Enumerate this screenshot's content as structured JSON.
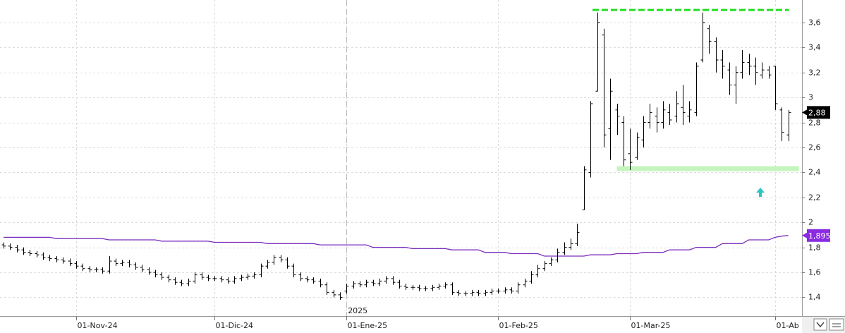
{
  "chart_data": {
    "type": "ohlc",
    "grid": true,
    "color": "#000000",
    "year_label": "2025",
    "categories": [
      null,
      null,
      null,
      null,
      null,
      null,
      null,
      null,
      null,
      null,
      null,
      "01-Nov-24",
      null,
      null,
      null,
      null,
      null,
      null,
      null,
      null,
      null,
      null,
      null,
      null,
      null,
      null,
      null,
      null,
      null,
      null,
      null,
      null,
      "01-Dic-24",
      null,
      null,
      null,
      null,
      null,
      null,
      null,
      null,
      null,
      null,
      null,
      null,
      null,
      null,
      null,
      null,
      null,
      null,
      null,
      "01-Ene-25",
      null,
      null,
      null,
      null,
      null,
      null,
      null,
      null,
      null,
      null,
      null,
      null,
      null,
      null,
      null,
      null,
      null,
      null,
      null,
      null,
      null,
      null,
      "01-Feb-25",
      null,
      null,
      null,
      null,
      null,
      null,
      null,
      null,
      null,
      null,
      null,
      null,
      null,
      null,
      null,
      null,
      null,
      null,
      null,
      "01-Mar-25",
      null,
      null,
      null,
      null,
      null,
      null,
      null,
      null,
      null,
      null,
      null,
      null,
      null,
      null,
      null,
      null,
      null,
      null,
      null,
      null,
      null,
      "01-Ab",
      null,
      null
    ],
    "open": [
      1.82,
      1.81,
      1.8,
      1.78,
      1.76,
      1.75,
      1.74,
      1.72,
      1.71,
      1.7,
      1.69,
      1.67,
      1.65,
      1.63,
      1.62,
      1.62,
      1.61,
      1.69,
      1.67,
      1.68,
      1.66,
      1.64,
      1.62,
      1.6,
      1.58,
      1.56,
      1.54,
      1.52,
      1.51,
      1.53,
      1.58,
      1.56,
      1.55,
      1.55,
      1.54,
      1.53,
      1.55,
      1.56,
      1.57,
      1.58,
      1.65,
      1.68,
      1.72,
      1.7,
      1.65,
      1.58,
      1.55,
      1.54,
      1.53,
      1.5,
      1.44,
      1.42,
      1.45,
      1.49,
      1.51,
      1.5,
      1.52,
      1.51,
      1.53,
      1.55,
      1.52,
      1.49,
      1.48,
      1.48,
      1.47,
      1.47,
      1.48,
      1.49,
      1.5,
      1.44,
      1.43,
      1.43,
      1.44,
      1.43,
      1.44,
      1.45,
      1.45,
      1.46,
      1.45,
      1.5,
      1.53,
      1.58,
      1.63,
      1.67,
      1.7,
      1.76,
      1.8,
      1.83,
      2.1,
      2.4,
      3.05,
      3.5,
      2.75,
      2.9,
      2.8,
      2.55,
      2.52,
      2.66,
      2.8,
      2.85,
      2.8,
      2.88,
      2.85,
      2.92,
      2.85,
      2.88,
      3.3,
      3.55,
      3.45,
      3.3,
      3.22,
      3.1,
      3.2,
      3.28,
      3.25,
      3.18,
      3.22,
      3.25,
      2.9,
      2.7
    ],
    "high": [
      1.84,
      1.83,
      1.82,
      1.8,
      1.78,
      1.77,
      1.76,
      1.74,
      1.73,
      1.72,
      1.71,
      1.69,
      1.67,
      1.65,
      1.64,
      1.64,
      1.73,
      1.71,
      1.7,
      1.7,
      1.68,
      1.66,
      1.64,
      1.62,
      1.6,
      1.58,
      1.56,
      1.54,
      1.55,
      1.6,
      1.6,
      1.58,
      1.57,
      1.57,
      1.56,
      1.57,
      1.58,
      1.59,
      1.6,
      1.67,
      1.7,
      1.74,
      1.74,
      1.72,
      1.67,
      1.6,
      1.57,
      1.56,
      1.55,
      1.52,
      1.46,
      1.44,
      1.51,
      1.53,
      1.53,
      1.54,
      1.54,
      1.55,
      1.57,
      1.57,
      1.54,
      1.51,
      1.5,
      1.5,
      1.49,
      1.5,
      1.51,
      1.52,
      1.52,
      1.46,
      1.45,
      1.46,
      1.46,
      1.46,
      1.47,
      1.47,
      1.48,
      1.48,
      1.52,
      1.55,
      1.61,
      1.66,
      1.69,
      1.72,
      1.79,
      1.84,
      1.87,
      1.99,
      2.45,
      2.97,
      3.68,
      3.55,
      3.15,
      2.95,
      2.85,
      2.75,
      2.72,
      2.85,
      2.95,
      2.92,
      2.97,
      2.95,
      3.05,
      3.1,
      2.97,
      3.28,
      3.68,
      3.58,
      3.48,
      3.38,
      3.28,
      3.25,
      3.38,
      3.35,
      3.32,
      3.28,
      3.25,
      3.25,
      2.92,
      2.9
    ],
    "low": [
      1.79,
      1.78,
      1.76,
      1.74,
      1.73,
      1.72,
      1.7,
      1.69,
      1.68,
      1.67,
      1.65,
      1.63,
      1.61,
      1.6,
      1.6,
      1.59,
      1.59,
      1.65,
      1.65,
      1.64,
      1.62,
      1.6,
      1.58,
      1.56,
      1.54,
      1.52,
      1.5,
      1.49,
      1.49,
      1.51,
      1.54,
      1.53,
      1.53,
      1.52,
      1.51,
      1.51,
      1.53,
      1.54,
      1.55,
      1.56,
      1.63,
      1.66,
      1.68,
      1.63,
      1.56,
      1.53,
      1.52,
      1.51,
      1.48,
      1.42,
      1.4,
      1.38,
      1.43,
      1.47,
      1.48,
      1.48,
      1.49,
      1.49,
      1.51,
      1.5,
      1.47,
      1.46,
      1.46,
      1.45,
      1.45,
      1.45,
      1.46,
      1.47,
      1.42,
      1.41,
      1.41,
      1.41,
      1.41,
      1.41,
      1.42,
      1.43,
      1.43,
      1.43,
      1.43,
      1.48,
      1.51,
      1.56,
      1.61,
      1.65,
      1.68,
      1.74,
      1.78,
      1.81,
      2.1,
      2.36,
      3.05,
      2.6,
      2.5,
      2.7,
      2.45,
      2.42,
      2.5,
      2.6,
      2.75,
      2.72,
      2.75,
      2.78,
      2.8,
      2.78,
      2.8,
      2.85,
      3.28,
      3.35,
      3.2,
      3.15,
      3.02,
      2.95,
      3.15,
      3.18,
      3.1,
      3.15,
      3.15,
      2.9,
      2.65,
      2.65
    ],
    "close": [
      1.81,
      1.8,
      1.78,
      1.76,
      1.75,
      1.74,
      1.72,
      1.71,
      1.7,
      1.69,
      1.67,
      1.65,
      1.63,
      1.62,
      1.62,
      1.61,
      1.69,
      1.67,
      1.68,
      1.66,
      1.64,
      1.62,
      1.6,
      1.58,
      1.56,
      1.54,
      1.52,
      1.51,
      1.53,
      1.58,
      1.56,
      1.55,
      1.55,
      1.54,
      1.53,
      1.55,
      1.56,
      1.57,
      1.58,
      1.65,
      1.68,
      1.72,
      1.7,
      1.65,
      1.58,
      1.55,
      1.54,
      1.53,
      1.5,
      1.44,
      1.42,
      1.4,
      1.49,
      1.51,
      1.5,
      1.52,
      1.51,
      1.53,
      1.55,
      1.52,
      1.49,
      1.48,
      1.48,
      1.47,
      1.47,
      1.48,
      1.49,
      1.5,
      1.44,
      1.43,
      1.43,
      1.44,
      1.43,
      1.44,
      1.45,
      1.45,
      1.46,
      1.45,
      1.5,
      1.53,
      1.58,
      1.63,
      1.67,
      1.7,
      1.76,
      1.8,
      1.83,
      1.92,
      2.42,
      2.95,
      3.6,
      2.7,
      3.05,
      2.85,
      2.5,
      2.48,
      2.68,
      2.8,
      2.88,
      2.8,
      2.9,
      2.82,
      2.95,
      2.88,
      2.9,
      3.25,
      3.6,
      3.45,
      3.3,
      3.25,
      3.1,
      3.2,
      3.28,
      3.25,
      3.2,
      3.22,
      3.18,
      2.95,
      2.72,
      2.88
    ],
    "moving_average": {
      "color": "#7b2fbe",
      "values": [
        1.88,
        1.88,
        1.88,
        1.88,
        1.88,
        1.88,
        1.88,
        1.88,
        1.87,
        1.87,
        1.87,
        1.87,
        1.87,
        1.87,
        1.87,
        1.87,
        1.86,
        1.86,
        1.86,
        1.86,
        1.86,
        1.86,
        1.86,
        1.86,
        1.85,
        1.85,
        1.85,
        1.85,
        1.85,
        1.85,
        1.85,
        1.85,
        1.84,
        1.84,
        1.84,
        1.84,
        1.84,
        1.84,
        1.84,
        1.84,
        1.83,
        1.83,
        1.83,
        1.83,
        1.83,
        1.83,
        1.83,
        1.83,
        1.82,
        1.82,
        1.82,
        1.82,
        1.82,
        1.82,
        1.82,
        1.82,
        1.8,
        1.8,
        1.8,
        1.8,
        1.8,
        1.8,
        1.79,
        1.79,
        1.79,
        1.79,
        1.79,
        1.79,
        1.78,
        1.78,
        1.78,
        1.78,
        1.78,
        1.76,
        1.76,
        1.76,
        1.76,
        1.75,
        1.75,
        1.75,
        1.75,
        1.75,
        1.73,
        1.73,
        1.73,
        1.73,
        1.73,
        1.73,
        1.73,
        1.74,
        1.74,
        1.74,
        1.74,
        1.75,
        1.75,
        1.75,
        1.75,
        1.76,
        1.76,
        1.76,
        1.76,
        1.78,
        1.78,
        1.78,
        1.78,
        1.8,
        1.8,
        1.8,
        1.8,
        1.83,
        1.83,
        1.83,
        1.83,
        1.86,
        1.86,
        1.86,
        1.86,
        1.88,
        1.89,
        1.895
      ]
    },
    "last_price": {
      "value": 2.88,
      "label": "2,88",
      "color": "#000000"
    },
    "last_average": {
      "value": 1.895,
      "label": "1,895",
      "color": "#8a2be2"
    },
    "levels": [
      {
        "value": 3.7,
        "color": "#22dd22",
        "style": "dashed"
      },
      {
        "value": 2.43,
        "color": "#c4f5bc",
        "style": "solid"
      }
    ],
    "ylim": [
      1.25,
      3.78
    ],
    "yticks": [
      {
        "value": 1.4,
        "label": "1,4"
      },
      {
        "value": 1.6,
        "label": "1,6"
      },
      {
        "value": 1.8,
        "label": "1,8"
      },
      2,
      {
        "value": 2.2,
        "label": "2,2"
      },
      {
        "value": 2.4,
        "label": "2,4"
      },
      {
        "value": 2.6,
        "label": "2,6"
      },
      {
        "value": 2.8,
        "label": "2,8"
      },
      3,
      {
        "value": 3.2,
        "label": "3,2"
      },
      {
        "value": 3.4,
        "label": "3,4"
      },
      {
        "value": 3.6,
        "label": "3,6"
      }
    ]
  }
}
